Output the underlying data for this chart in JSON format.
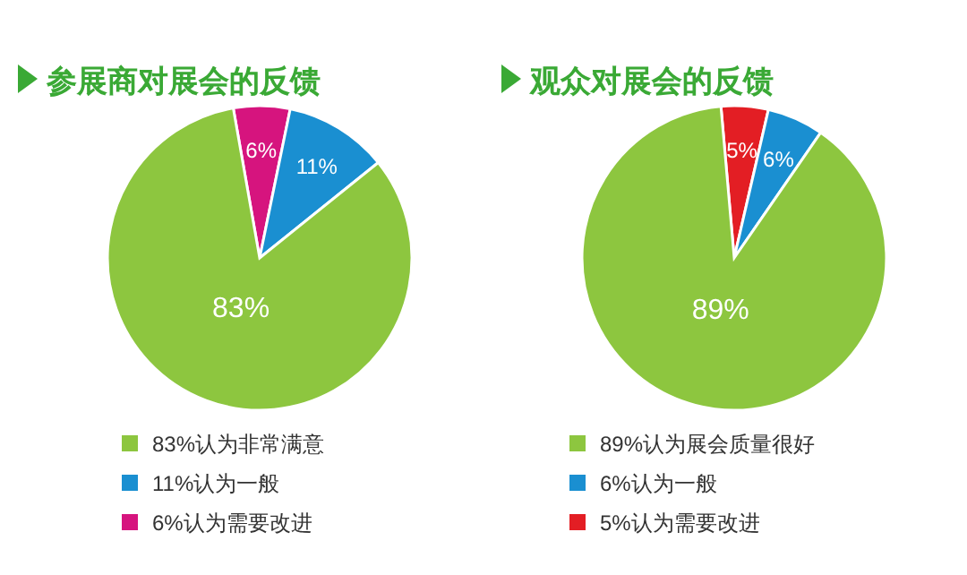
{
  "chart_data": [
    {
      "type": "pie",
      "title": "参展商对展会的反馈",
      "categories": [
        "83%认为非常满意",
        "11%认为一般",
        "6%认为需要改进"
      ],
      "values": [
        83,
        11,
        6
      ],
      "value_labels": [
        "83%",
        "11%",
        "6%"
      ],
      "colors": [
        "#8dc63f",
        "#1a8fd1",
        "#d6147e"
      ],
      "legend": "bottom"
    },
    {
      "type": "pie",
      "title": "观众对展会的反馈",
      "categories": [
        "89%认为展会质量很好",
        "6%认为一般",
        "5%认为需要改进"
      ],
      "values": [
        89,
        6,
        5
      ],
      "value_labels": [
        "89%",
        "6%",
        "5%"
      ],
      "colors": [
        "#8dc63f",
        "#1a8fd1",
        "#e31e24"
      ],
      "legend": "bottom"
    }
  ]
}
